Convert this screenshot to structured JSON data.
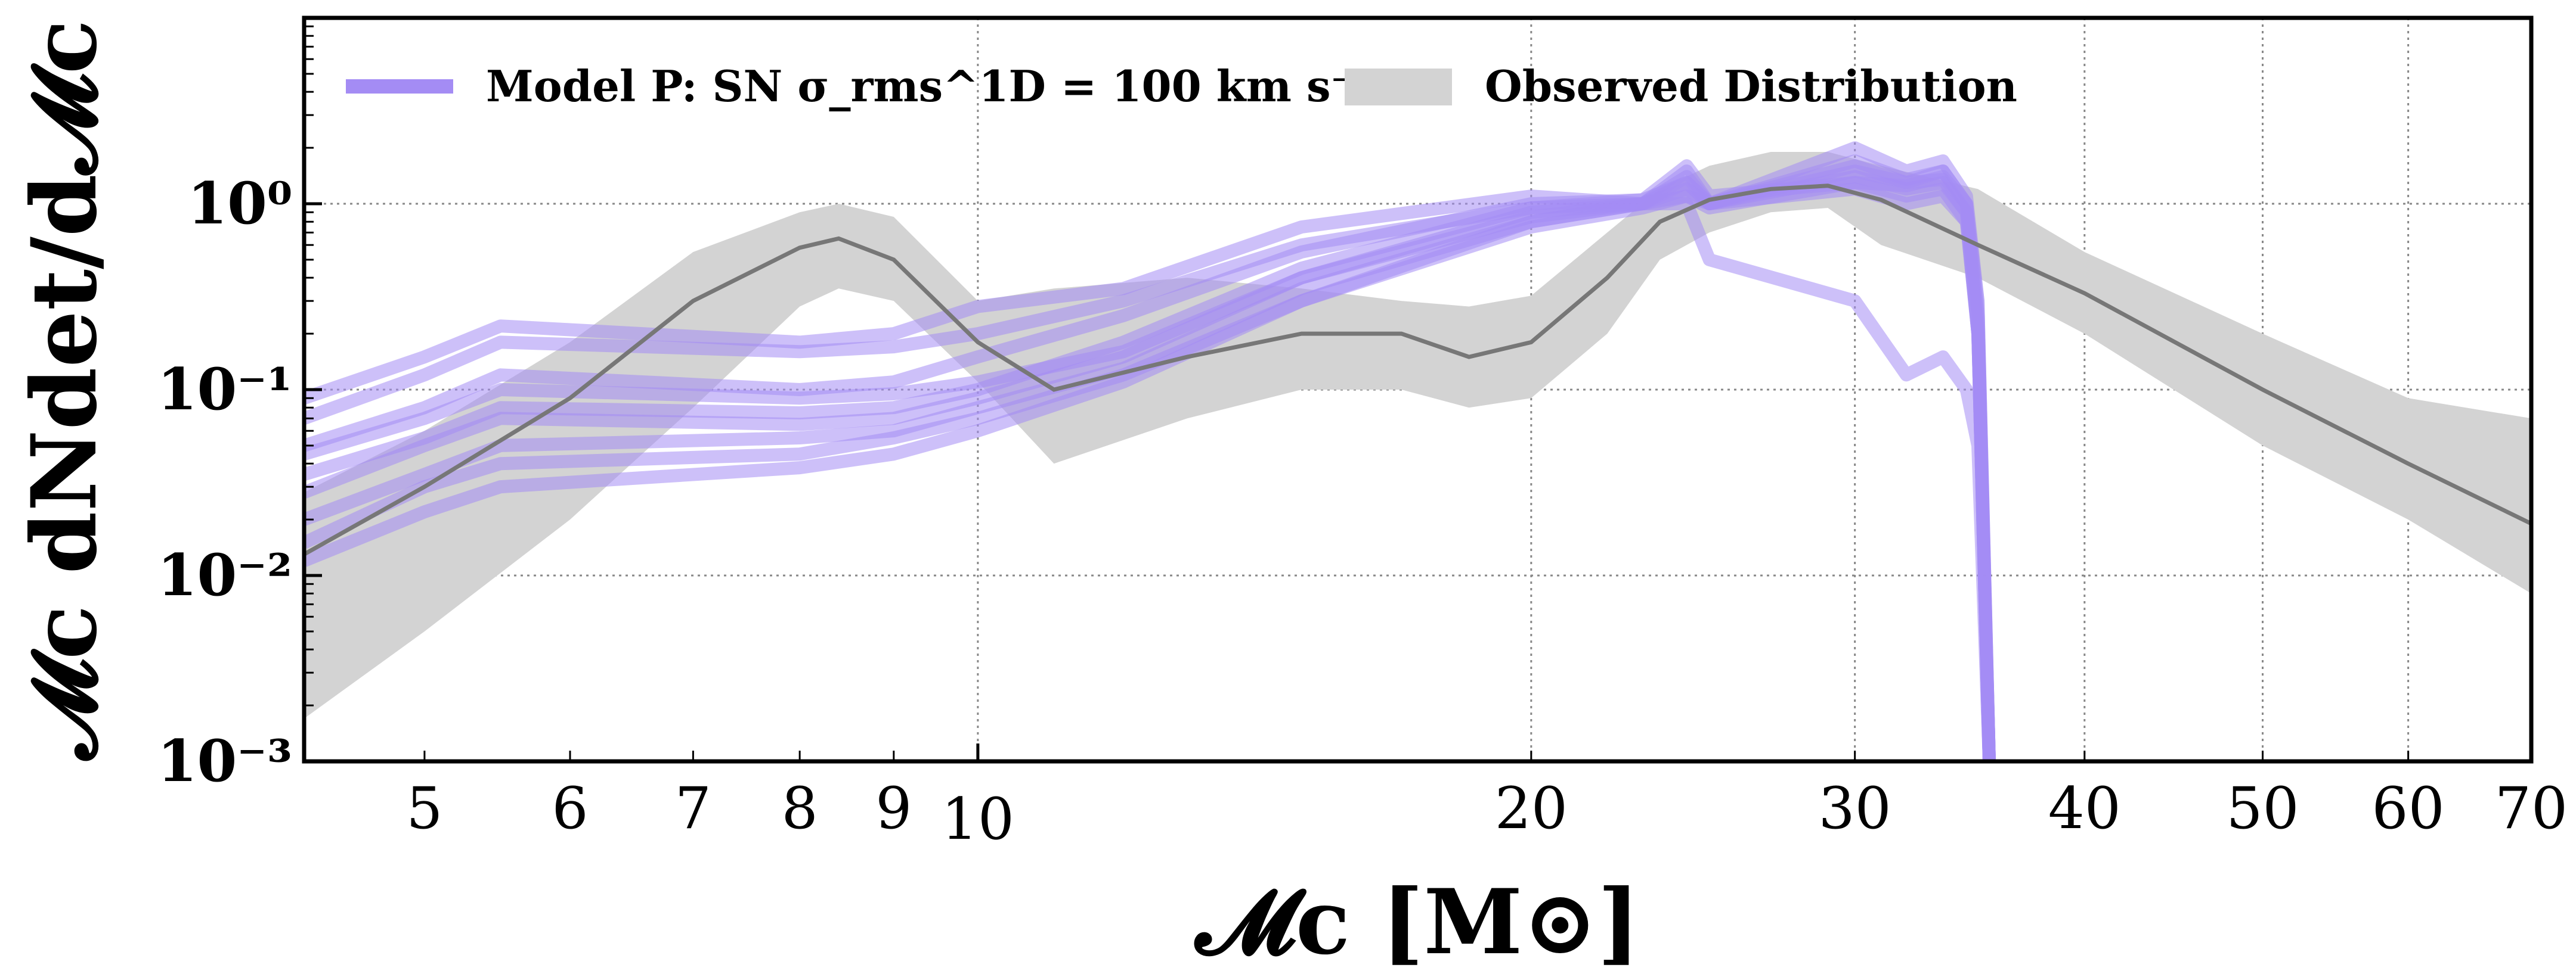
{
  "chart_data": {
    "type": "line",
    "xscale": "log",
    "yscale": "log",
    "xlim": [
      4.3,
      70
    ],
    "ylim": [
      0.001,
      10
    ],
    "grid": true,
    "legend_position": "top-left",
    "xlabel": "𝓜c [M⊙]",
    "ylabel": "𝓜c dNdet/d𝓜c",
    "x_ticks": [
      5,
      6,
      7,
      8,
      9,
      10,
      20,
      30,
      40,
      50,
      60,
      70
    ],
    "y_ticks": [
      {
        "value": 1,
        "label": "10⁰"
      },
      {
        "value": 0.1,
        "label": "10⁻¹"
      },
      {
        "value": 0.01,
        "label": "10⁻²"
      },
      {
        "value": 0.001,
        "label": "10⁻³"
      }
    ],
    "legend": {
      "model_label": "Model P: SN σ_rms^1D = 100 km s⁻¹",
      "observed_label": "Observed Distribution"
    },
    "colors": {
      "model": "#a48cf4",
      "observed_band": "#d3d3d3",
      "observed_median": "#777777"
    },
    "observed": {
      "x": [
        4.3,
        5,
        6,
        7,
        8,
        8.4,
        9,
        10,
        11,
        13,
        15,
        17,
        18.5,
        20,
        22,
        23.5,
        25,
        27,
        29,
        31,
        35,
        40,
        50,
        60,
        70
      ],
      "y_mid": [
        0.013,
        0.03,
        0.09,
        0.3,
        0.58,
        0.65,
        0.5,
        0.18,
        0.1,
        0.15,
        0.2,
        0.2,
        0.15,
        0.18,
        0.4,
        0.8,
        1.05,
        1.2,
        1.25,
        1.05,
        0.6,
        0.33,
        0.1,
        0.04,
        0.019
      ],
      "y_lo": [
        0.0017,
        0.005,
        0.02,
        0.08,
        0.28,
        0.35,
        0.3,
        0.11,
        0.04,
        0.07,
        0.1,
        0.1,
        0.08,
        0.09,
        0.2,
        0.5,
        0.7,
        0.9,
        0.95,
        0.6,
        0.4,
        0.2,
        0.05,
        0.02,
        0.008
      ],
      "y_hi": [
        0.028,
        0.06,
        0.18,
        0.55,
        0.9,
        1.0,
        0.85,
        0.3,
        0.35,
        0.4,
        0.35,
        0.3,
        0.28,
        0.32,
        0.7,
        1.2,
        1.6,
        1.9,
        1.9,
        1.6,
        1.2,
        0.55,
        0.2,
        0.09,
        0.07
      ]
    },
    "series": [
      {
        "x": [
          4.3,
          5,
          5.5,
          8,
          9,
          10,
          12,
          15,
          20,
          23,
          24.3,
          25,
          30,
          32,
          33.5,
          34.5,
          35,
          35.5
        ],
        "values": [
          0.09,
          0.15,
          0.22,
          0.18,
          0.2,
          0.28,
          0.35,
          0.75,
          1.1,
          1.0,
          1.0,
          0.5,
          0.3,
          0.12,
          0.15,
          0.1,
          0.05,
          0.001
        ]
      },
      {
        "x": [
          4.3,
          5,
          5.5,
          8,
          9,
          10,
          12,
          15,
          20,
          23,
          24.3,
          25,
          30,
          32,
          33.5,
          34.5,
          35,
          35.5
        ],
        "values": [
          0.07,
          0.12,
          0.18,
          0.16,
          0.17,
          0.2,
          0.3,
          0.6,
          0.95,
          1.05,
          1.6,
          1.1,
          1.3,
          1.25,
          1.4,
          1.0,
          0.3,
          0.001
        ]
      },
      {
        "x": [
          4.3,
          5,
          5.5,
          8,
          9,
          10,
          12,
          15,
          20,
          23,
          24.3,
          25,
          30,
          32,
          33.5,
          34.5,
          35,
          35.5
        ],
        "values": [
          0.045,
          0.07,
          0.1,
          0.09,
          0.095,
          0.11,
          0.16,
          0.4,
          0.9,
          1.0,
          1.4,
          1.0,
          1.5,
          1.3,
          1.35,
          0.9,
          0.2,
          0.001
        ]
      },
      {
        "x": [
          4.3,
          5,
          5.5,
          8,
          9,
          10,
          12,
          15,
          20,
          23,
          24.3,
          25,
          30,
          32,
          33.5,
          34.5,
          35,
          35.5
        ],
        "values": [
          0.035,
          0.055,
          0.08,
          0.075,
          0.08,
          0.1,
          0.18,
          0.45,
          0.95,
          1.0,
          1.5,
          1.0,
          2.0,
          1.5,
          1.7,
          1.1,
          0.3,
          0.001
        ]
      },
      {
        "x": [
          4.3,
          5,
          5.5,
          8,
          9,
          10,
          12,
          15,
          20,
          23,
          24.3,
          25,
          30,
          32,
          33.5,
          34.5,
          35,
          35.5
        ],
        "values": [
          0.028,
          0.05,
          0.07,
          0.065,
          0.07,
          0.09,
          0.15,
          0.4,
          0.85,
          1.0,
          1.3,
          1.0,
          1.7,
          1.35,
          1.5,
          1.0,
          0.25,
          0.001
        ]
      },
      {
        "x": [
          4.3,
          5,
          5.5,
          8,
          9,
          10,
          12,
          15,
          20,
          23,
          24.3,
          25,
          30,
          32,
          33.5,
          34.5,
          35,
          35.5
        ],
        "values": [
          0.02,
          0.035,
          0.05,
          0.055,
          0.06,
          0.08,
          0.13,
          0.35,
          0.8,
          1.0,
          1.2,
          1.0,
          1.4,
          1.2,
          1.3,
          0.9,
          0.2,
          0.001
        ]
      },
      {
        "x": [
          4.3,
          5,
          5.5,
          8,
          9,
          10,
          12,
          15,
          20,
          23,
          24.3,
          25,
          30,
          32,
          33.5,
          34.5,
          35,
          35.5
        ],
        "values": [
          0.015,
          0.03,
          0.04,
          0.045,
          0.055,
          0.07,
          0.12,
          0.3,
          0.75,
          0.95,
          1.1,
          0.95,
          1.3,
          1.1,
          1.2,
          0.8,
          0.2,
          0.001
        ]
      },
      {
        "x": [
          4.3,
          5,
          5.5,
          8,
          9,
          10,
          12,
          15,
          20,
          23,
          24.3,
          25,
          30,
          32,
          33.5,
          34.5,
          35,
          35.5
        ],
        "values": [
          0.012,
          0.022,
          0.03,
          0.038,
          0.045,
          0.06,
          0.11,
          0.3,
          0.8,
          1.0,
          1.1,
          1.0,
          1.6,
          1.3,
          1.5,
          1.0,
          0.25,
          0.001
        ]
      },
      {
        "x": [
          4.3,
          5,
          5.5,
          8,
          9,
          10,
          12,
          15,
          20,
          23,
          24.3,
          25,
          30,
          32,
          33.5,
          34.5,
          35,
          35.5
        ],
        "values": [
          0.05,
          0.08,
          0.12,
          0.1,
          0.11,
          0.15,
          0.25,
          0.55,
          1.0,
          1.05,
          1.3,
          1.0,
          1.2,
          1.0,
          1.1,
          0.8,
          0.2,
          0.001
        ]
      }
    ]
  }
}
